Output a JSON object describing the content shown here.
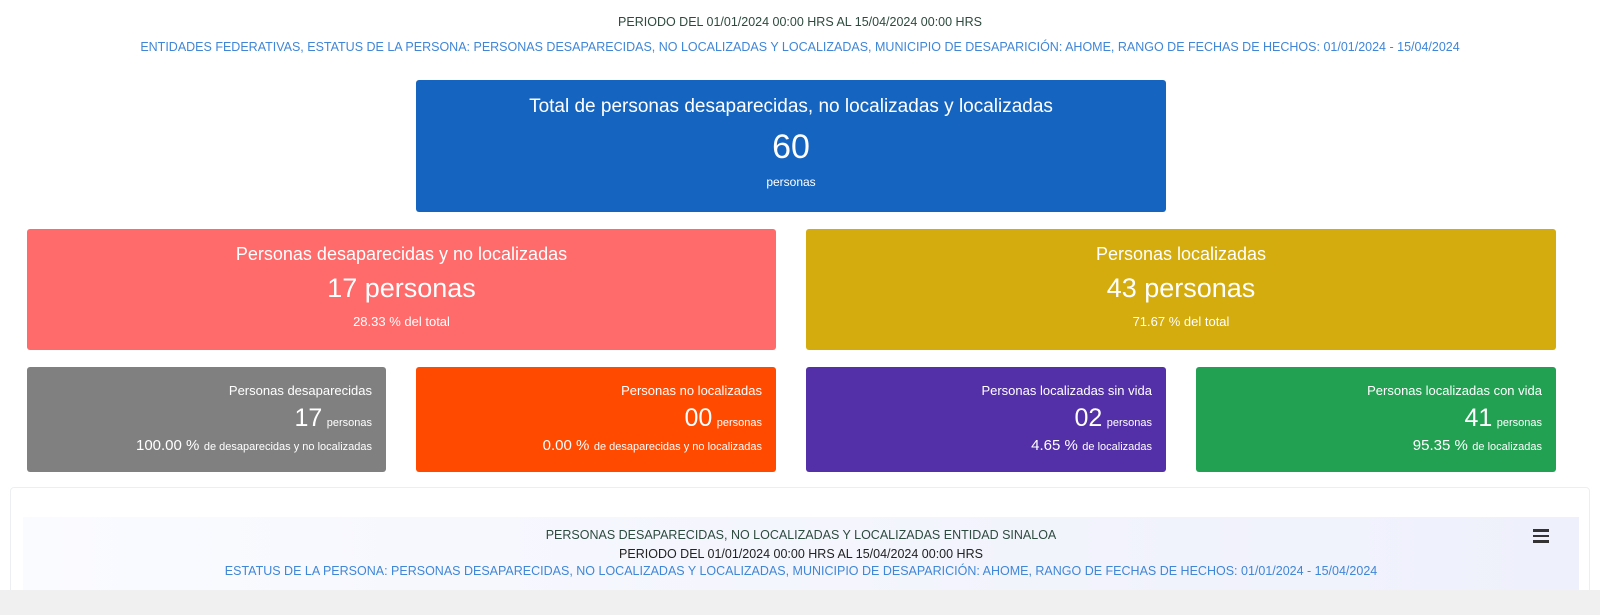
{
  "header": {
    "period": "PERIODO DEL 01/01/2024 00:00 HRS AL 15/04/2024 00:00 HRS",
    "filters": "ENTIDADES FEDERATIVAS, ESTATUS DE LA PERSONA: PERSONAS DESAPARECIDAS, NO LOCALIZADAS Y LOCALIZADAS, MUNICIPIO DE DESAPARICIÓN: AHOME, RANGO DE FECHAS DE HECHOS: 01/01/2024 - 15/04/2024"
  },
  "total": {
    "title": "Total de personas desaparecidas, no localizadas y localizadas",
    "value": "60",
    "unit": "personas"
  },
  "summary": [
    {
      "title": "Personas desaparecidas y no localizadas",
      "value": "17 personas",
      "percent": "28.33 %",
      "note": "del total"
    },
    {
      "title": "Personas localizadas",
      "value": "43 personas",
      "percent": "71.67 %",
      "note": "del total"
    }
  ],
  "details": [
    {
      "title": "Personas desaparecidas",
      "value": "17",
      "unit": "personas",
      "percent": "100.00 %",
      "note": "de desaparecidas y no localizadas"
    },
    {
      "title": "Personas no localizadas",
      "value": "00",
      "unit": "personas",
      "percent": "0.00 %",
      "note": "de desaparecidas y no localizadas"
    },
    {
      "title": "Personas localizadas sin vida",
      "value": "02",
      "unit": "personas",
      "percent": "4.65 %",
      "note": "de localizadas"
    },
    {
      "title": "Personas localizadas con vida",
      "value": "41",
      "unit": "personas",
      "percent": "95.35 %",
      "note": "de localizadas"
    }
  ],
  "chart_panel": {
    "title": "PERSONAS DESAPARECIDAS, NO LOCALIZADAS Y LOCALIZADAS ENTIDAD SINALOA",
    "period": "PERIODO DEL 01/01/2024 00:00 HRS AL 15/04/2024 00:00 HRS",
    "filters": "ESTATUS DE LA PERSONA: PERSONAS DESAPARECIDAS, NO LOCALIZADAS Y LOCALIZADAS, MUNICIPIO DE DESAPARICIÓN: AHOME, RANGO DE FECHAS DE HECHOS: 01/01/2024 - 15/04/2024"
  }
}
